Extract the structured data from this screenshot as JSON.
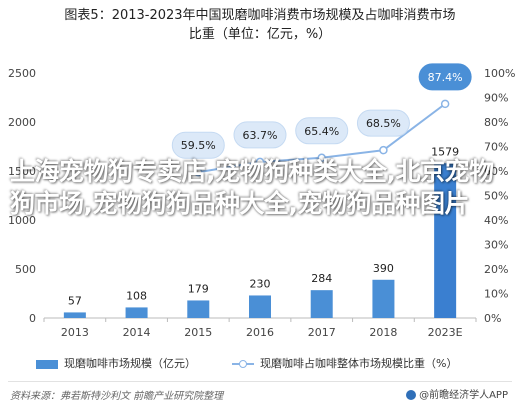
{
  "title_line1": "图表5：2013-2023年中国现磨咖啡消费市场规模及占咖啡消费市场",
  "title_line2": "比重（单位：亿元，%）",
  "watermark_text": "上海宠物狗专卖店,宠物狗种类大全,北京宠物狗市场,宠物狗狗品种大全,宠物狗品种图片",
  "legend": {
    "bar_label": "现磨咖啡市场规模（亿元）",
    "line_label": "现磨咖啡占咖啡整体市场规模比重（%）"
  },
  "source_text": "资料来源：弗若斯特沙利文 前瞻产业研究院整理",
  "brand_text": "@前瞻经济学人APP",
  "colors": {
    "bar": "#4a8fd6",
    "bar_last": "#3a7fd0",
    "line": "#8ab4e6",
    "bubble_fill": "#dce9f8",
    "bubble_last": "#4a8fd6"
  },
  "chart_data": {
    "type": "bar",
    "categories": [
      "2013",
      "2014",
      "2015",
      "2016",
      "2017",
      "2018",
      "2023E"
    ],
    "series": [
      {
        "name": "现磨咖啡市场规模（亿元）",
        "type": "bar",
        "axis": "left",
        "values": [
          57,
          108,
          179,
          230,
          284,
          390,
          1579
        ]
      },
      {
        "name": "现磨咖啡占咖啡整体市场规模比重（%）",
        "type": "line",
        "axis": "right",
        "values": [
          null,
          null,
          59.5,
          63.7,
          65.4,
          68.5,
          87.4
        ]
      }
    ],
    "y_left": {
      "ylim": [
        0,
        2500
      ],
      "ticks": [
        0,
        500,
        1000,
        1500,
        2000,
        2500
      ]
    },
    "y_right": {
      "ylim": [
        0,
        100
      ],
      "ticks": [
        "0%",
        "10%",
        "20%",
        "30%",
        "40%",
        "50%",
        "60%",
        "70%",
        "80%",
        "90%",
        "100%"
      ]
    },
    "bar_labels": [
      "57",
      "108",
      "179",
      "230",
      "284",
      "390",
      "1579"
    ],
    "line_labels": [
      "59.5%",
      "63.7%",
      "65.4%",
      "68.5%",
      "87.4%"
    ],
    "legend_position": "bottom",
    "grid": false
  }
}
